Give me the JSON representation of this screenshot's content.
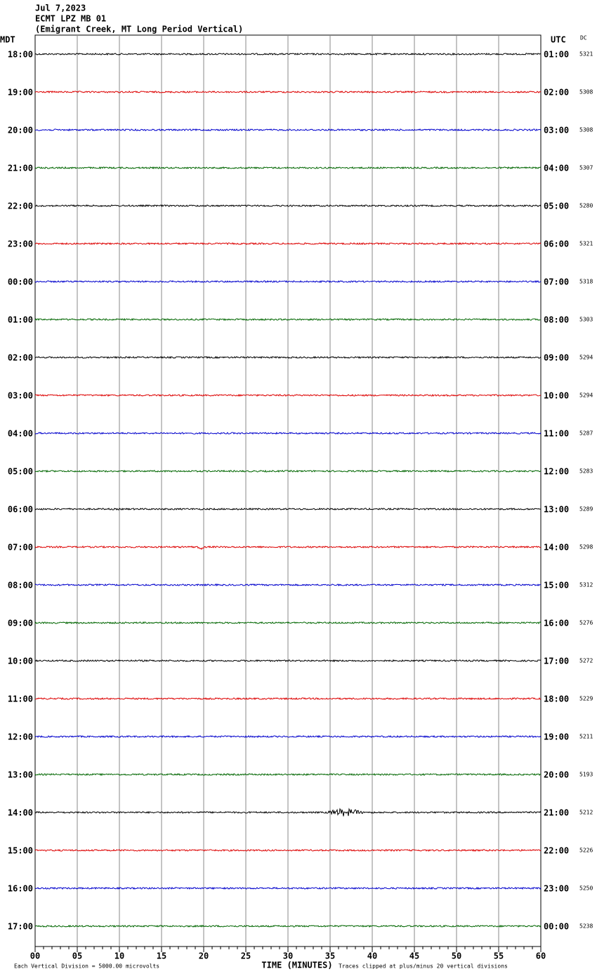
{
  "header": {
    "date": "Jul 7,2023",
    "station": "ECMT LPZ MB 01",
    "description": "(Emigrant Creek, MT Long Period Vertical)"
  },
  "left_axis_title": "MDT",
  "right_axis_title": "UTC",
  "dc_title": "DC",
  "rows": [
    {
      "mdt": "18:00",
      "utc": "01:00",
      "dc": "5321"
    },
    {
      "mdt": "19:00",
      "utc": "02:00",
      "dc": "5308"
    },
    {
      "mdt": "20:00",
      "utc": "03:00",
      "dc": "5308"
    },
    {
      "mdt": "21:00",
      "utc": "04:00",
      "dc": "5307"
    },
    {
      "mdt": "22:00",
      "utc": "05:00",
      "dc": "5280"
    },
    {
      "mdt": "23:00",
      "utc": "06:00",
      "dc": "5321"
    },
    {
      "mdt": "00:00",
      "utc": "07:00",
      "dc": "5318"
    },
    {
      "mdt": "01:00",
      "utc": "08:00",
      "dc": "5303"
    },
    {
      "mdt": "02:00",
      "utc": "09:00",
      "dc": "5294"
    },
    {
      "mdt": "03:00",
      "utc": "10:00",
      "dc": "5294"
    },
    {
      "mdt": "04:00",
      "utc": "11:00",
      "dc": "5287"
    },
    {
      "mdt": "05:00",
      "utc": "12:00",
      "dc": "5283"
    },
    {
      "mdt": "06:00",
      "utc": "13:00",
      "dc": "5289"
    },
    {
      "mdt": "07:00",
      "utc": "14:00",
      "dc": "5298"
    },
    {
      "mdt": "08:00",
      "utc": "15:00",
      "dc": "5312"
    },
    {
      "mdt": "09:00",
      "utc": "16:00",
      "dc": "5276"
    },
    {
      "mdt": "10:00",
      "utc": "17:00",
      "dc": "5272"
    },
    {
      "mdt": "11:00",
      "utc": "18:00",
      "dc": "5229"
    },
    {
      "mdt": "12:00",
      "utc": "19:00",
      "dc": "5211"
    },
    {
      "mdt": "13:00",
      "utc": "20:00",
      "dc": "5193"
    },
    {
      "mdt": "14:00",
      "utc": "21:00",
      "dc": "5212"
    },
    {
      "mdt": "15:00",
      "utc": "22:00",
      "dc": "5226"
    },
    {
      "mdt": "16:00",
      "utc": "23:00",
      "dc": "5250"
    },
    {
      "mdt": "17:00",
      "utc": "00:00",
      "dc": "5238"
    }
  ],
  "trace_colors": [
    "#000000",
    "#dd0000",
    "#0000cc",
    "#006600"
  ],
  "x_axis": {
    "title": "TIME (MINUTES)",
    "ticks": [
      "00",
      "05",
      "10",
      "15",
      "20",
      "25",
      "30",
      "35",
      "40",
      "45",
      "50",
      "55",
      "60"
    ]
  },
  "footer": {
    "scale_note": "Each Vertical Division = 5000.00 microvolts",
    "clip_note": "Traces clipped at plus/minus 20 vertical divisions"
  }
}
